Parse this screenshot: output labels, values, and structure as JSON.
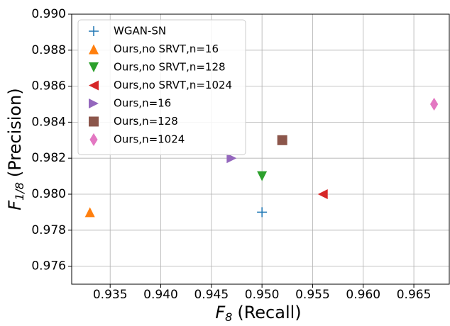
{
  "chart_data": {
    "type": "scatter",
    "xlabel": {
      "main": "F",
      "sub": "8",
      "rest": "(Recall)"
    },
    "ylabel": {
      "main": "F",
      "sub": "1/8",
      "rest": "(Precision)"
    },
    "xlim": [
      0.9312,
      0.9685
    ],
    "ylim": [
      0.975,
      0.99
    ],
    "xticks": [
      0.935,
      {
        "value": 0.94,
        "label": "0.940"
      },
      0.945,
      {
        "value": 0.95,
        "label": "0.950"
      },
      0.955,
      {
        "value": 0.96,
        "label": "0.960"
      },
      0.965
    ],
    "yticks": [
      0.976,
      0.978,
      {
        "value": 0.98,
        "label": "0.980"
      },
      0.982,
      0.984,
      0.986,
      0.988,
      {
        "value": 0.99,
        "label": "0.990"
      }
    ],
    "grid": true,
    "legend": "upper left",
    "series": [
      {
        "name": "WGAN-SN",
        "color": "#1f77b4",
        "marker": "plus",
        "x": [
          0.95
        ],
        "values": [
          0.979
        ]
      },
      {
        "name": "Ours,no SRVT,n=16",
        "color": "#ff7f0e",
        "marker": "triangle-up",
        "x": [
          0.933
        ],
        "values": [
          0.979
        ]
      },
      {
        "name": "Ours,no SRVT,n=128",
        "color": "#2ca02c",
        "marker": "triangle-down",
        "x": [
          0.95
        ],
        "values": [
          0.981
        ]
      },
      {
        "name": "Ours,no SRVT,n=1024",
        "color": "#d62728",
        "marker": "triangle-left",
        "x": [
          0.956
        ],
        "values": [
          0.98
        ]
      },
      {
        "name": "Ours,n=16",
        "color": "#9467bd",
        "marker": "triangle-right",
        "x": [
          0.947
        ],
        "values": [
          0.982
        ]
      },
      {
        "name": "Ours,n=128",
        "color": "#8c564b",
        "marker": "square",
        "x": [
          0.952
        ],
        "values": [
          0.983
        ]
      },
      {
        "name": "Ours,n=1024",
        "color": "#e377c2",
        "marker": "diamond",
        "x": [
          0.967
        ],
        "values": [
          0.985
        ]
      }
    ]
  }
}
